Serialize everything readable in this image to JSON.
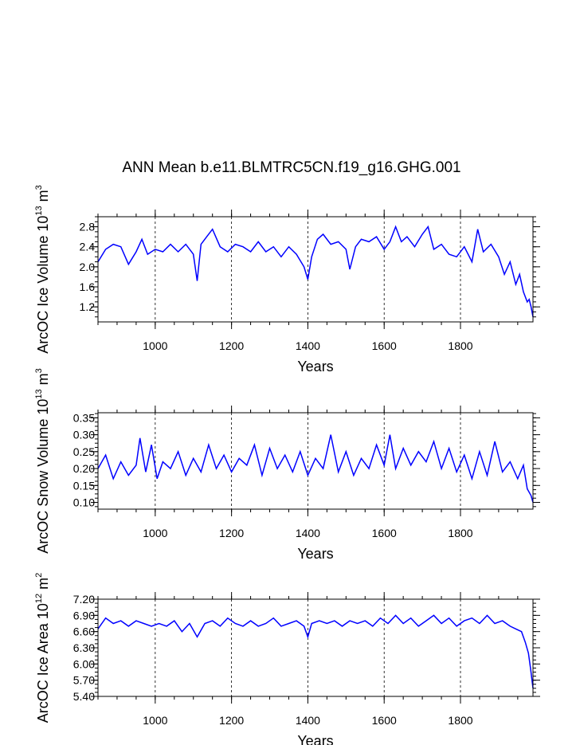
{
  "figure": {
    "title": "ANN Mean b.e11.BLMTRC5CN.f19_g16.GHG.001"
  },
  "line_color": "#0000ff",
  "chart_data": [
    {
      "type": "line",
      "xlabel": "Years",
      "ylabel": {
        "prefix": "ArcOC Ice Volume 10",
        "exp1": "13",
        "mid": " m",
        "exp2": "3"
      },
      "xlim": [
        850,
        1990
      ],
      "ylim": [
        0.9,
        3.0
      ],
      "xticks": [
        1000,
        1200,
        1400,
        1600,
        1800
      ],
      "yticks": [
        1.2,
        1.6,
        2.0,
        2.4,
        2.8
      ],
      "ytick_labels": [
        "1.2",
        "1.6",
        "2.0",
        "2.4",
        "2.8"
      ],
      "grid": "dashed-vertical",
      "series": [
        {
          "x": [
            850,
            870,
            890,
            910,
            930,
            950,
            965,
            980,
            1000,
            1020,
            1040,
            1060,
            1080,
            1100,
            1110,
            1120,
            1135,
            1150,
            1170,
            1190,
            1210,
            1230,
            1250,
            1270,
            1290,
            1310,
            1330,
            1350,
            1370,
            1390,
            1400,
            1410,
            1425,
            1440,
            1460,
            1480,
            1500,
            1510,
            1525,
            1540,
            1560,
            1580,
            1600,
            1615,
            1630,
            1645,
            1660,
            1680,
            1700,
            1715,
            1730,
            1750,
            1770,
            1790,
            1810,
            1830,
            1845,
            1860,
            1880,
            1900,
            1915,
            1930,
            1945,
            1955,
            1965,
            1975,
            1980,
            1985,
            1990
          ],
          "values": [
            2.1,
            2.35,
            2.45,
            2.4,
            2.05,
            2.3,
            2.55,
            2.25,
            2.35,
            2.3,
            2.45,
            2.3,
            2.45,
            2.25,
            1.72,
            2.45,
            2.6,
            2.75,
            2.4,
            2.3,
            2.45,
            2.4,
            2.3,
            2.5,
            2.3,
            2.4,
            2.2,
            2.4,
            2.25,
            2.0,
            1.75,
            2.2,
            2.55,
            2.65,
            2.45,
            2.5,
            2.35,
            1.95,
            2.4,
            2.55,
            2.5,
            2.6,
            2.35,
            2.5,
            2.8,
            2.5,
            2.6,
            2.4,
            2.65,
            2.8,
            2.35,
            2.45,
            2.25,
            2.2,
            2.4,
            2.1,
            2.75,
            2.3,
            2.45,
            2.2,
            1.85,
            2.1,
            1.65,
            1.85,
            1.5,
            1.3,
            1.35,
            1.2,
            1.0
          ]
        }
      ]
    },
    {
      "type": "line",
      "xlabel": "Years",
      "ylabel": {
        "prefix": "ArcOC Snow Volume 10",
        "exp1": "13",
        "mid": " m",
        "exp2": "3"
      },
      "xlim": [
        850,
        1990
      ],
      "ylim": [
        0.08,
        0.365
      ],
      "xticks": [
        1000,
        1200,
        1400,
        1600,
        1800
      ],
      "yticks": [
        0.1,
        0.15,
        0.2,
        0.25,
        0.3,
        0.35
      ],
      "ytick_labels": [
        "0.10",
        "0.15",
        "0.20",
        "0.25",
        "0.30",
        "0.35"
      ],
      "grid": "dashed-vertical",
      "series": [
        {
          "x": [
            850,
            870,
            890,
            910,
            930,
            950,
            960,
            975,
            990,
            1005,
            1020,
            1040,
            1060,
            1080,
            1100,
            1120,
            1140,
            1160,
            1180,
            1200,
            1220,
            1240,
            1260,
            1280,
            1300,
            1320,
            1340,
            1360,
            1380,
            1400,
            1420,
            1440,
            1460,
            1480,
            1500,
            1520,
            1540,
            1560,
            1580,
            1600,
            1615,
            1630,
            1650,
            1670,
            1690,
            1710,
            1730,
            1750,
            1770,
            1790,
            1810,
            1830,
            1850,
            1870,
            1890,
            1910,
            1930,
            1950,
            1965,
            1975,
            1985,
            1990
          ],
          "values": [
            0.2,
            0.24,
            0.17,
            0.22,
            0.18,
            0.21,
            0.29,
            0.19,
            0.27,
            0.17,
            0.22,
            0.2,
            0.25,
            0.18,
            0.23,
            0.19,
            0.27,
            0.2,
            0.24,
            0.19,
            0.23,
            0.21,
            0.27,
            0.18,
            0.26,
            0.2,
            0.24,
            0.19,
            0.25,
            0.18,
            0.23,
            0.2,
            0.3,
            0.19,
            0.25,
            0.18,
            0.23,
            0.2,
            0.27,
            0.21,
            0.3,
            0.2,
            0.26,
            0.21,
            0.25,
            0.22,
            0.28,
            0.2,
            0.26,
            0.19,
            0.24,
            0.17,
            0.25,
            0.18,
            0.28,
            0.19,
            0.22,
            0.17,
            0.21,
            0.14,
            0.12,
            0.1
          ]
        }
      ]
    },
    {
      "type": "line",
      "xlabel": "Years",
      "ylabel": {
        "prefix": "ArcOC Ice Area 10",
        "exp1": "12",
        "mid": " m",
        "exp2": "2"
      },
      "xlim": [
        850,
        1990
      ],
      "ylim": [
        5.4,
        7.2
      ],
      "xticks": [
        1000,
        1200,
        1400,
        1600,
        1800
      ],
      "yticks": [
        5.4,
        5.7,
        6.0,
        6.3,
        6.6,
        6.9,
        7.2
      ],
      "ytick_labels": [
        "5.40",
        "5.70",
        "6.00",
        "6.30",
        "6.60",
        "6.90",
        "7.20"
      ],
      "grid": "dashed-vertical",
      "series": [
        {
          "x": [
            850,
            870,
            890,
            910,
            930,
            950,
            970,
            990,
            1010,
            1030,
            1050,
            1070,
            1090,
            1110,
            1130,
            1150,
            1170,
            1190,
            1210,
            1230,
            1250,
            1270,
            1290,
            1310,
            1330,
            1350,
            1370,
            1390,
            1400,
            1410,
            1430,
            1450,
            1470,
            1490,
            1510,
            1530,
            1550,
            1570,
            1590,
            1610,
            1630,
            1650,
            1670,
            1690,
            1710,
            1730,
            1750,
            1770,
            1790,
            1810,
            1830,
            1850,
            1870,
            1890,
            1910,
            1930,
            1945,
            1960,
            1970,
            1978,
            1984,
            1990
          ],
          "values": [
            6.65,
            6.85,
            6.75,
            6.8,
            6.7,
            6.8,
            6.75,
            6.7,
            6.75,
            6.7,
            6.8,
            6.6,
            6.75,
            6.5,
            6.75,
            6.8,
            6.7,
            6.85,
            6.75,
            6.7,
            6.8,
            6.7,
            6.75,
            6.85,
            6.7,
            6.75,
            6.8,
            6.7,
            6.5,
            6.75,
            6.8,
            6.75,
            6.8,
            6.7,
            6.8,
            6.75,
            6.8,
            6.7,
            6.85,
            6.75,
            6.9,
            6.75,
            6.85,
            6.7,
            6.8,
            6.9,
            6.75,
            6.85,
            6.7,
            6.8,
            6.85,
            6.75,
            6.9,
            6.75,
            6.8,
            6.7,
            6.65,
            6.6,
            6.4,
            6.2,
            5.9,
            5.55
          ]
        }
      ]
    }
  ]
}
